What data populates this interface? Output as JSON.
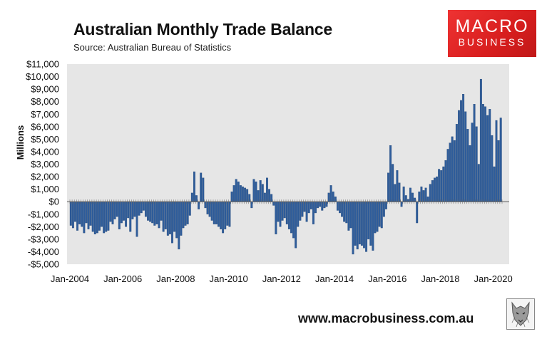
{
  "header": {
    "title": "Australian Monthly Trade Balance",
    "subtitle": "Source: Australian Bureau of Statistics"
  },
  "logo": {
    "line1": "MACRO",
    "line2": "BUSINESS"
  },
  "footer": {
    "url": "www.macrobusiness.com.au"
  },
  "colors": {
    "bar": "#2f5d9b",
    "bar_edge": "#1f4270",
    "plot_bg": "#e6e6e6",
    "logo_red": "#e52a2a"
  },
  "chart_data": {
    "type": "bar",
    "title": "Australian Monthly Trade Balance",
    "ylabel": "Millions",
    "xlabel": "",
    "ylim": [
      -5000,
      11000
    ],
    "yticks": [
      -5000,
      -4000,
      -3000,
      -2000,
      -1000,
      0,
      1000,
      2000,
      3000,
      4000,
      5000,
      6000,
      7000,
      8000,
      9000,
      10000,
      11000
    ],
    "ytick_labels": [
      "-$5,000",
      "-$4,000",
      "-$3,000",
      "-$2,000",
      "-$1,000",
      "$0",
      "$1,000",
      "$2,000",
      "$3,000",
      "$4,000",
      "$5,000",
      "$6,000",
      "$7,000",
      "$8,000",
      "$9,000",
      "$10,000",
      "$11,000"
    ],
    "xtick_labels": [
      "Jan-2004",
      "Jan-2006",
      "Jan-2008",
      "Jan-2010",
      "Jan-2012",
      "Jan-2014",
      "Jan-2016",
      "Jan-2018",
      "Jan-2020"
    ],
    "start": "Jan-2004",
    "grid": false,
    "legend": "none",
    "series": [
      {
        "values": [
          -1900,
          -2100,
          -1600,
          -2300,
          -1800,
          -2000,
          -2500,
          -1700,
          -2200,
          -1900,
          -2400,
          -2600,
          -2500,
          -2300,
          -2000,
          -2500,
          -2400,
          -2300,
          -1600,
          -1800,
          -1400,
          -1200,
          -2200,
          -1700,
          -1500,
          -2000,
          -1300,
          -2400,
          -1400,
          -1200,
          -2800,
          -1100,
          -900,
          -700,
          -1200,
          -1500,
          -1600,
          -1700,
          -1900,
          -1800,
          -2100,
          -1500,
          -2400,
          -2200,
          -2700,
          -2600,
          -3300,
          -2400,
          -2900,
          -3800,
          -2700,
          -2100,
          -1900,
          -1800,
          -1100,
          700,
          2400,
          500,
          -600,
          2300,
          1900,
          -500,
          -1000,
          -1200,
          -1500,
          -1800,
          -1800,
          -2000,
          -2200,
          -2500,
          -2200,
          -1900,
          -2000,
          800,
          1300,
          1800,
          1600,
          1300,
          1200,
          1100,
          1000,
          600,
          -500,
          1800,
          1600,
          900,
          1700,
          1400,
          700,
          1900,
          1000,
          600,
          -300,
          -2600,
          -1600,
          -2000,
          -1500,
          -1300,
          -1800,
          -2200,
          -2500,
          -2900,
          -3700,
          -2000,
          -1500,
          -1200,
          -800,
          -1600,
          -900,
          -600,
          -1800,
          -900,
          -500,
          -400,
          -700,
          -500,
          -400,
          700,
          1300,
          800,
          400,
          -700,
          -900,
          -1200,
          -1600,
          -1700,
          -2300,
          -2100,
          -4200,
          -3500,
          -3800,
          -3400,
          -3500,
          -3700,
          -4000,
          -3000,
          -3500,
          -3900,
          -2500,
          -2400,
          -2000,
          -2100,
          -1200,
          -600,
          2300,
          4500,
          3000,
          1400,
          2500,
          1500,
          -400,
          1200,
          500,
          200,
          1100,
          700,
          300,
          -1700,
          800,
          1200,
          900,
          1100,
          400,
          1400,
          1700,
          1900,
          2000,
          2600,
          2500,
          2800,
          3300,
          4200,
          4700,
          5200,
          4900,
          6200,
          7300,
          8100,
          8600,
          7200,
          5800,
          4500,
          6300,
          7800,
          6000,
          3000,
          9800,
          7800,
          7600,
          6900,
          7400,
          5300,
          2800,
          6500,
          4900,
          6700
        ]
      }
    ]
  }
}
